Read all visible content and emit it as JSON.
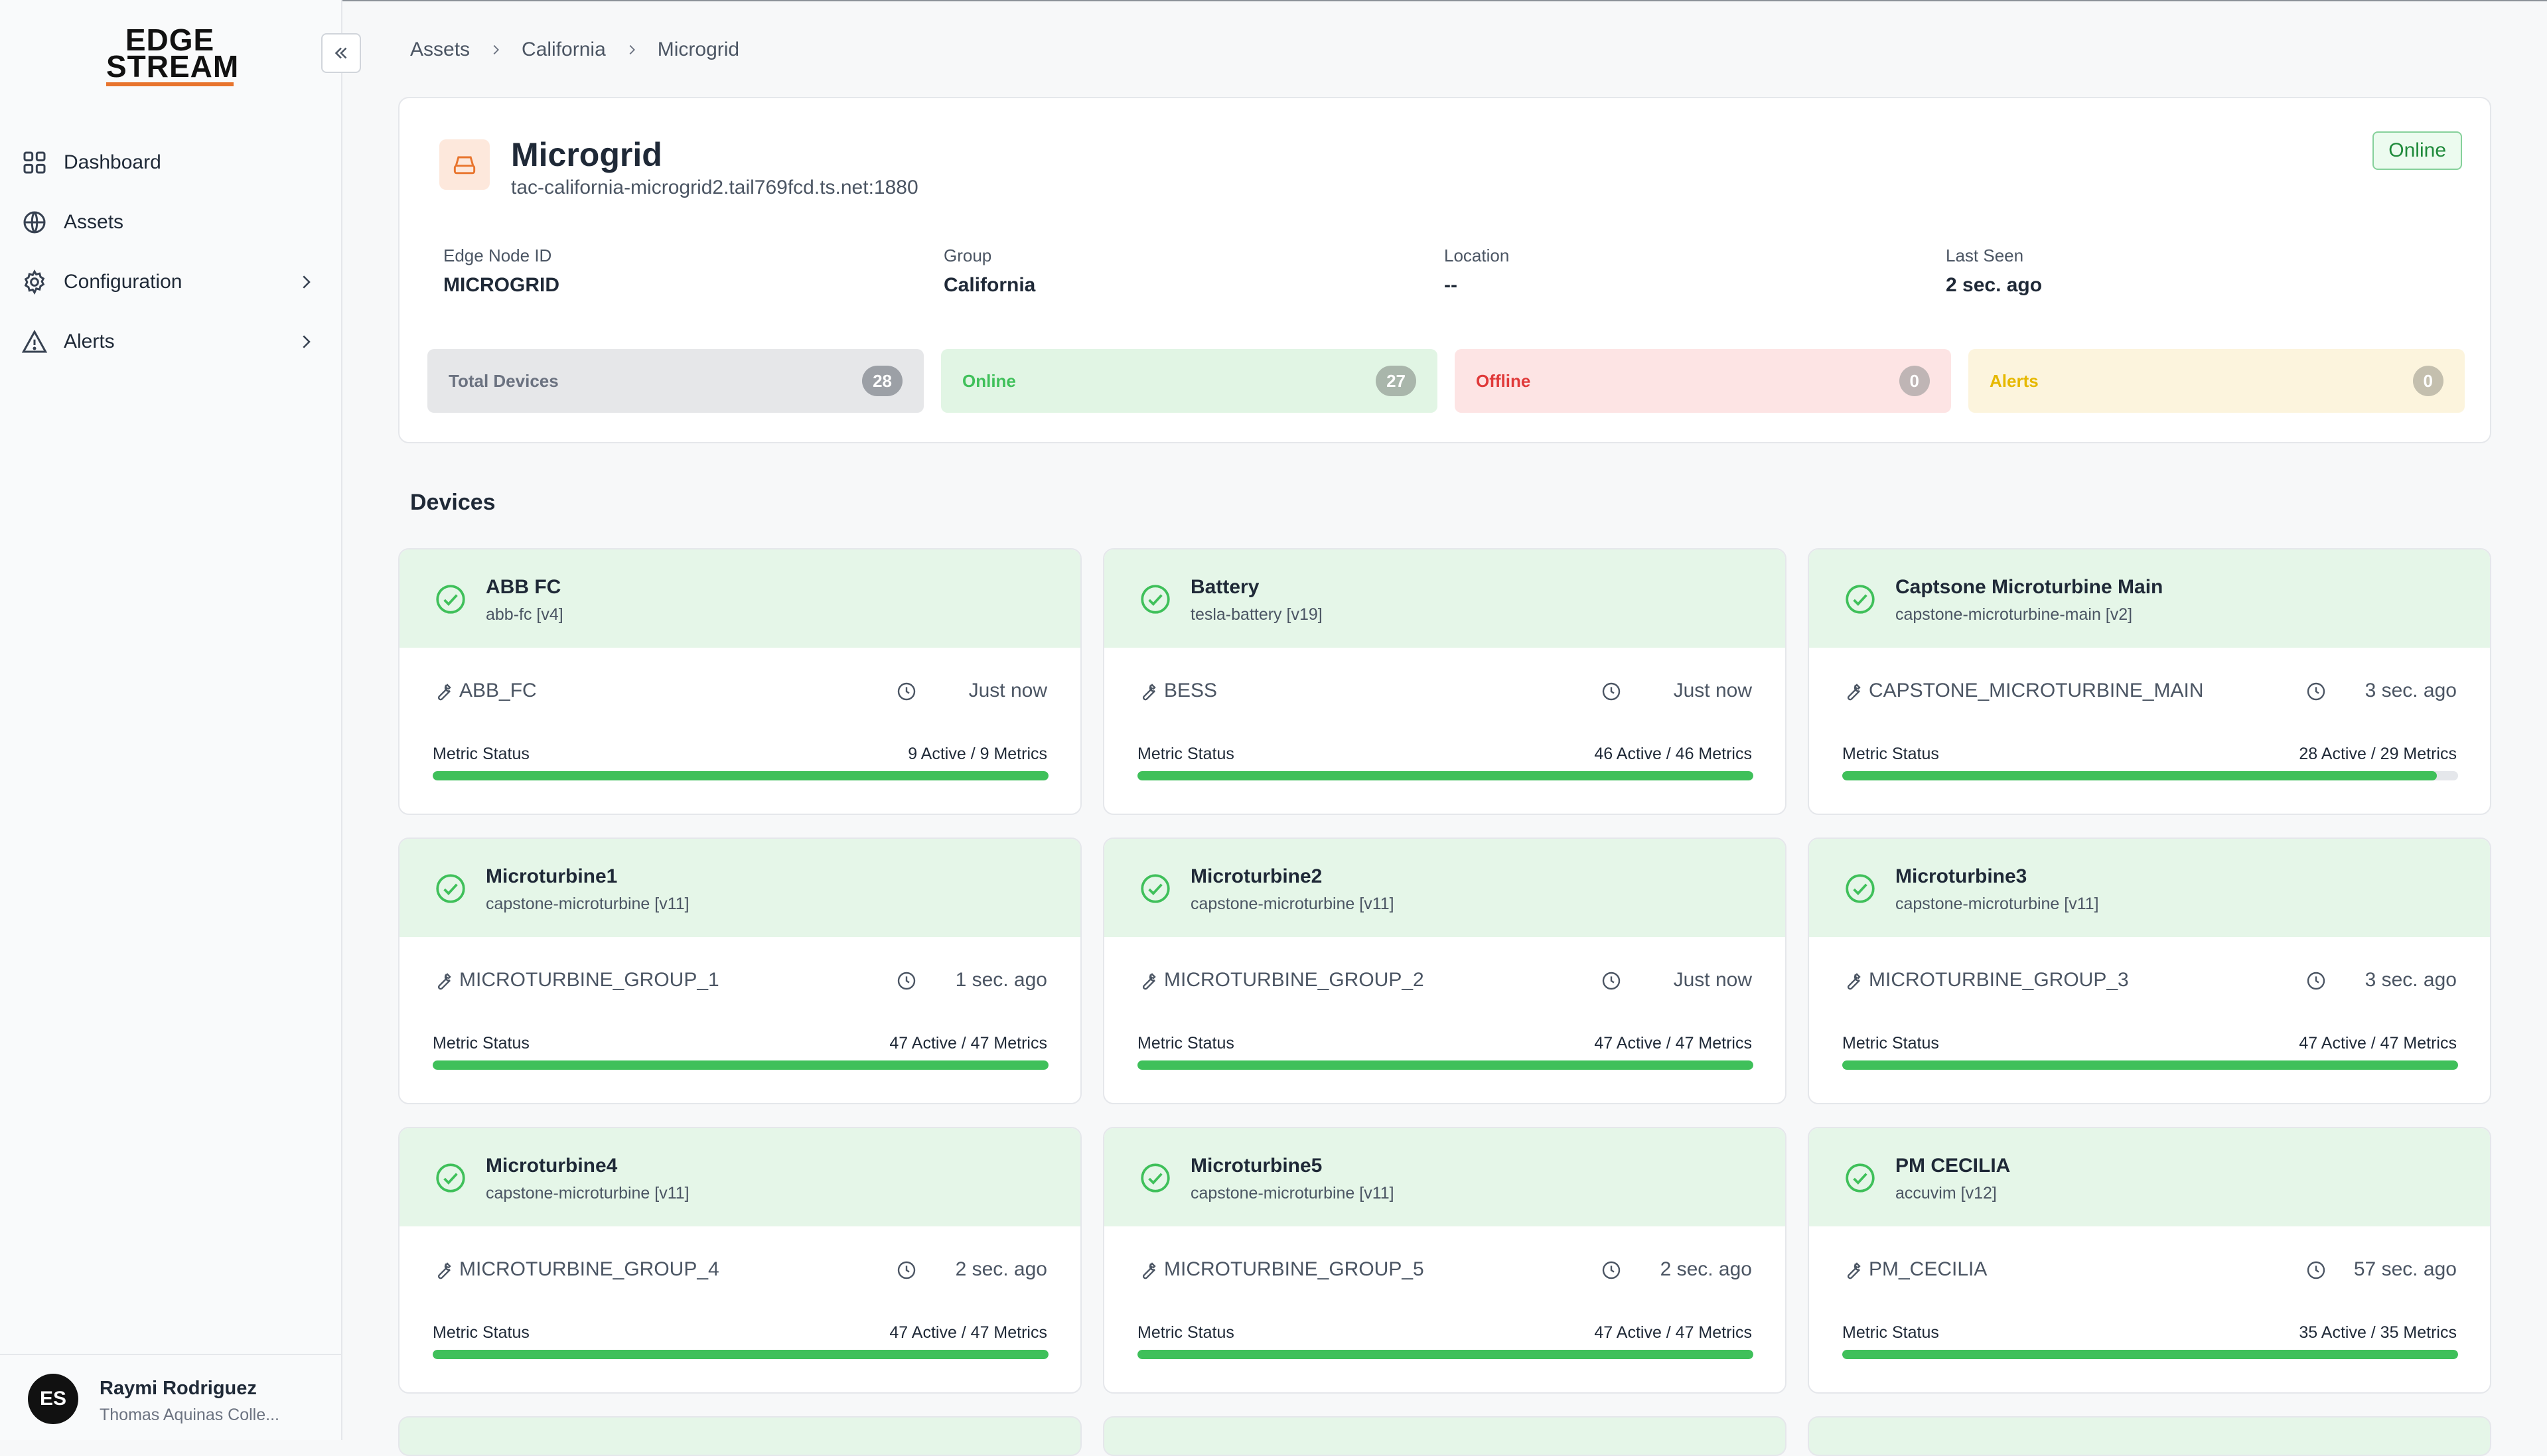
{
  "app": {
    "logo_line1": "EDGE",
    "logo_line2": "STREAM"
  },
  "sidebar": {
    "items": [
      {
        "label": "Dashboard",
        "icon": "grid-icon"
      },
      {
        "label": "Assets",
        "icon": "globe-icon"
      },
      {
        "label": "Configuration",
        "icon": "gear-icon",
        "has_children": true
      },
      {
        "label": "Alerts",
        "icon": "warning-icon",
        "has_children": true
      }
    ],
    "user": {
      "initials": "ES",
      "name": "Raymi Rodriguez",
      "org": "Thomas Aquinas Colle..."
    }
  },
  "breadcrumb": [
    "Assets",
    "California",
    "Microgrid"
  ],
  "node": {
    "name": "Microgrid",
    "host": "tac-california-microgrid2.tail769fcd.ts.net:1880",
    "status": "Online",
    "meta": [
      {
        "label": "Edge Node ID",
        "value": "MICROGRID"
      },
      {
        "label": "Group",
        "value": "California"
      },
      {
        "label": "Location",
        "value": "--"
      },
      {
        "label": "Last Seen",
        "value": "2 sec. ago"
      }
    ],
    "stats": [
      {
        "label": "Total Devices",
        "count": "28",
        "kind": "total"
      },
      {
        "label": "Online",
        "count": "27",
        "kind": "on"
      },
      {
        "label": "Offline",
        "count": "0",
        "kind": "off"
      },
      {
        "label": "Alerts",
        "count": "0",
        "kind": "al"
      }
    ]
  },
  "devices_heading": "Devices",
  "metric_label": "Metric Status",
  "devices": [
    {
      "name": "ABB FC",
      "sub": "abb-fc [v4]",
      "tag": "ABB_FC",
      "seen": "Just now",
      "metrics": "9 Active / 9 Metrics",
      "active": 9,
      "total": 9
    },
    {
      "name": "Battery",
      "sub": "tesla-battery [v19]",
      "tag": "BESS",
      "seen": "Just now",
      "metrics": "46 Active / 46 Metrics",
      "active": 46,
      "total": 46
    },
    {
      "name": "Captsone Microturbine Main",
      "sub": "capstone-microturbine-main [v2]",
      "tag": "CAPSTONE_MICROTURBINE_MAIN",
      "seen": "3 sec. ago",
      "metrics": "28 Active / 29 Metrics",
      "active": 28,
      "total": 29
    },
    {
      "name": "Microturbine1",
      "sub": "capstone-microturbine [v11]",
      "tag": "MICROTURBINE_GROUP_1",
      "seen": "1 sec. ago",
      "metrics": "47 Active / 47 Metrics",
      "active": 47,
      "total": 47
    },
    {
      "name": "Microturbine2",
      "sub": "capstone-microturbine [v11]",
      "tag": "MICROTURBINE_GROUP_2",
      "seen": "Just now",
      "metrics": "47 Active / 47 Metrics",
      "active": 47,
      "total": 47
    },
    {
      "name": "Microturbine3",
      "sub": "capstone-microturbine [v11]",
      "tag": "MICROTURBINE_GROUP_3",
      "seen": "3 sec. ago",
      "metrics": "47 Active / 47 Metrics",
      "active": 47,
      "total": 47
    },
    {
      "name": "Microturbine4",
      "sub": "capstone-microturbine [v11]",
      "tag": "MICROTURBINE_GROUP_4",
      "seen": "2 sec. ago",
      "metrics": "47 Active / 47 Metrics",
      "active": 47,
      "total": 47
    },
    {
      "name": "Microturbine5",
      "sub": "capstone-microturbine [v11]",
      "tag": "MICROTURBINE_GROUP_5",
      "seen": "2 sec. ago",
      "metrics": "47 Active / 47 Metrics",
      "active": 47,
      "total": 47
    },
    {
      "name": "PM CECILIA",
      "sub": "accuvim [v12]",
      "tag": "PM_CECILIA",
      "seen": "57 sec. ago",
      "metrics": "35 Active / 35 Metrics",
      "active": 35,
      "total": 35
    }
  ],
  "colors": {
    "accent": "#e8742d",
    "online": "#3fc05a",
    "offline": "#e03a3a",
    "alert": "#e6b800"
  }
}
